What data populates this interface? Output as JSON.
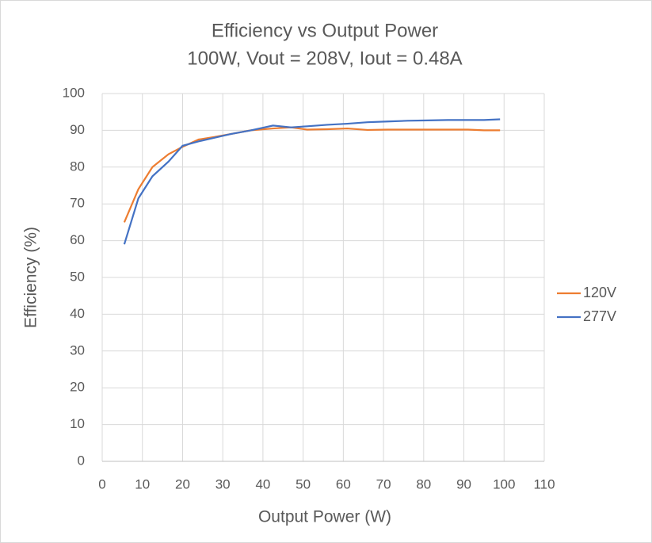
{
  "chart_data": {
    "type": "line",
    "title": "Efficiency vs Output Power",
    "subtitle": "100W, Vout = 208V, Iout = 0.48A",
    "x_label": "Output Power (W)",
    "y_label": "Efficiency (%)",
    "x": [
      5.5,
      9,
      12.5,
      16.5,
      20,
      24,
      28,
      32,
      37,
      42.5,
      47,
      51,
      56,
      61,
      66,
      71,
      76,
      81,
      86,
      91,
      95,
      99
    ],
    "series": [
      {
        "name": "120V",
        "color": "#ed7d31",
        "values": [
          65,
          74,
          80,
          83.5,
          85.5,
          87.5,
          88.2,
          89,
          90,
          90.5,
          90.8,
          90.2,
          90.3,
          90.5,
          90.1,
          90.2,
          90.2,
          90.2,
          90.2,
          90.2,
          90,
          90
        ]
      },
      {
        "name": "277V",
        "color": "#4472c4",
        "values": [
          59,
          71.5,
          77.5,
          81.5,
          85.8,
          87,
          88,
          89,
          90,
          91.3,
          90.8,
          91.1,
          91.5,
          91.8,
          92.2,
          92.4,
          92.6,
          92.7,
          92.8,
          92.8,
          92.8,
          93
        ]
      }
    ],
    "xlim": [
      0,
      110
    ],
    "xticks": [
      0,
      10,
      20,
      30,
      40,
      50,
      60,
      70,
      80,
      90,
      100,
      110
    ],
    "ylim": [
      0,
      100
    ],
    "yticks": [
      0,
      10,
      20,
      30,
      40,
      50,
      60,
      70,
      80,
      90,
      100
    ],
    "grid": true,
    "legend": "right"
  }
}
